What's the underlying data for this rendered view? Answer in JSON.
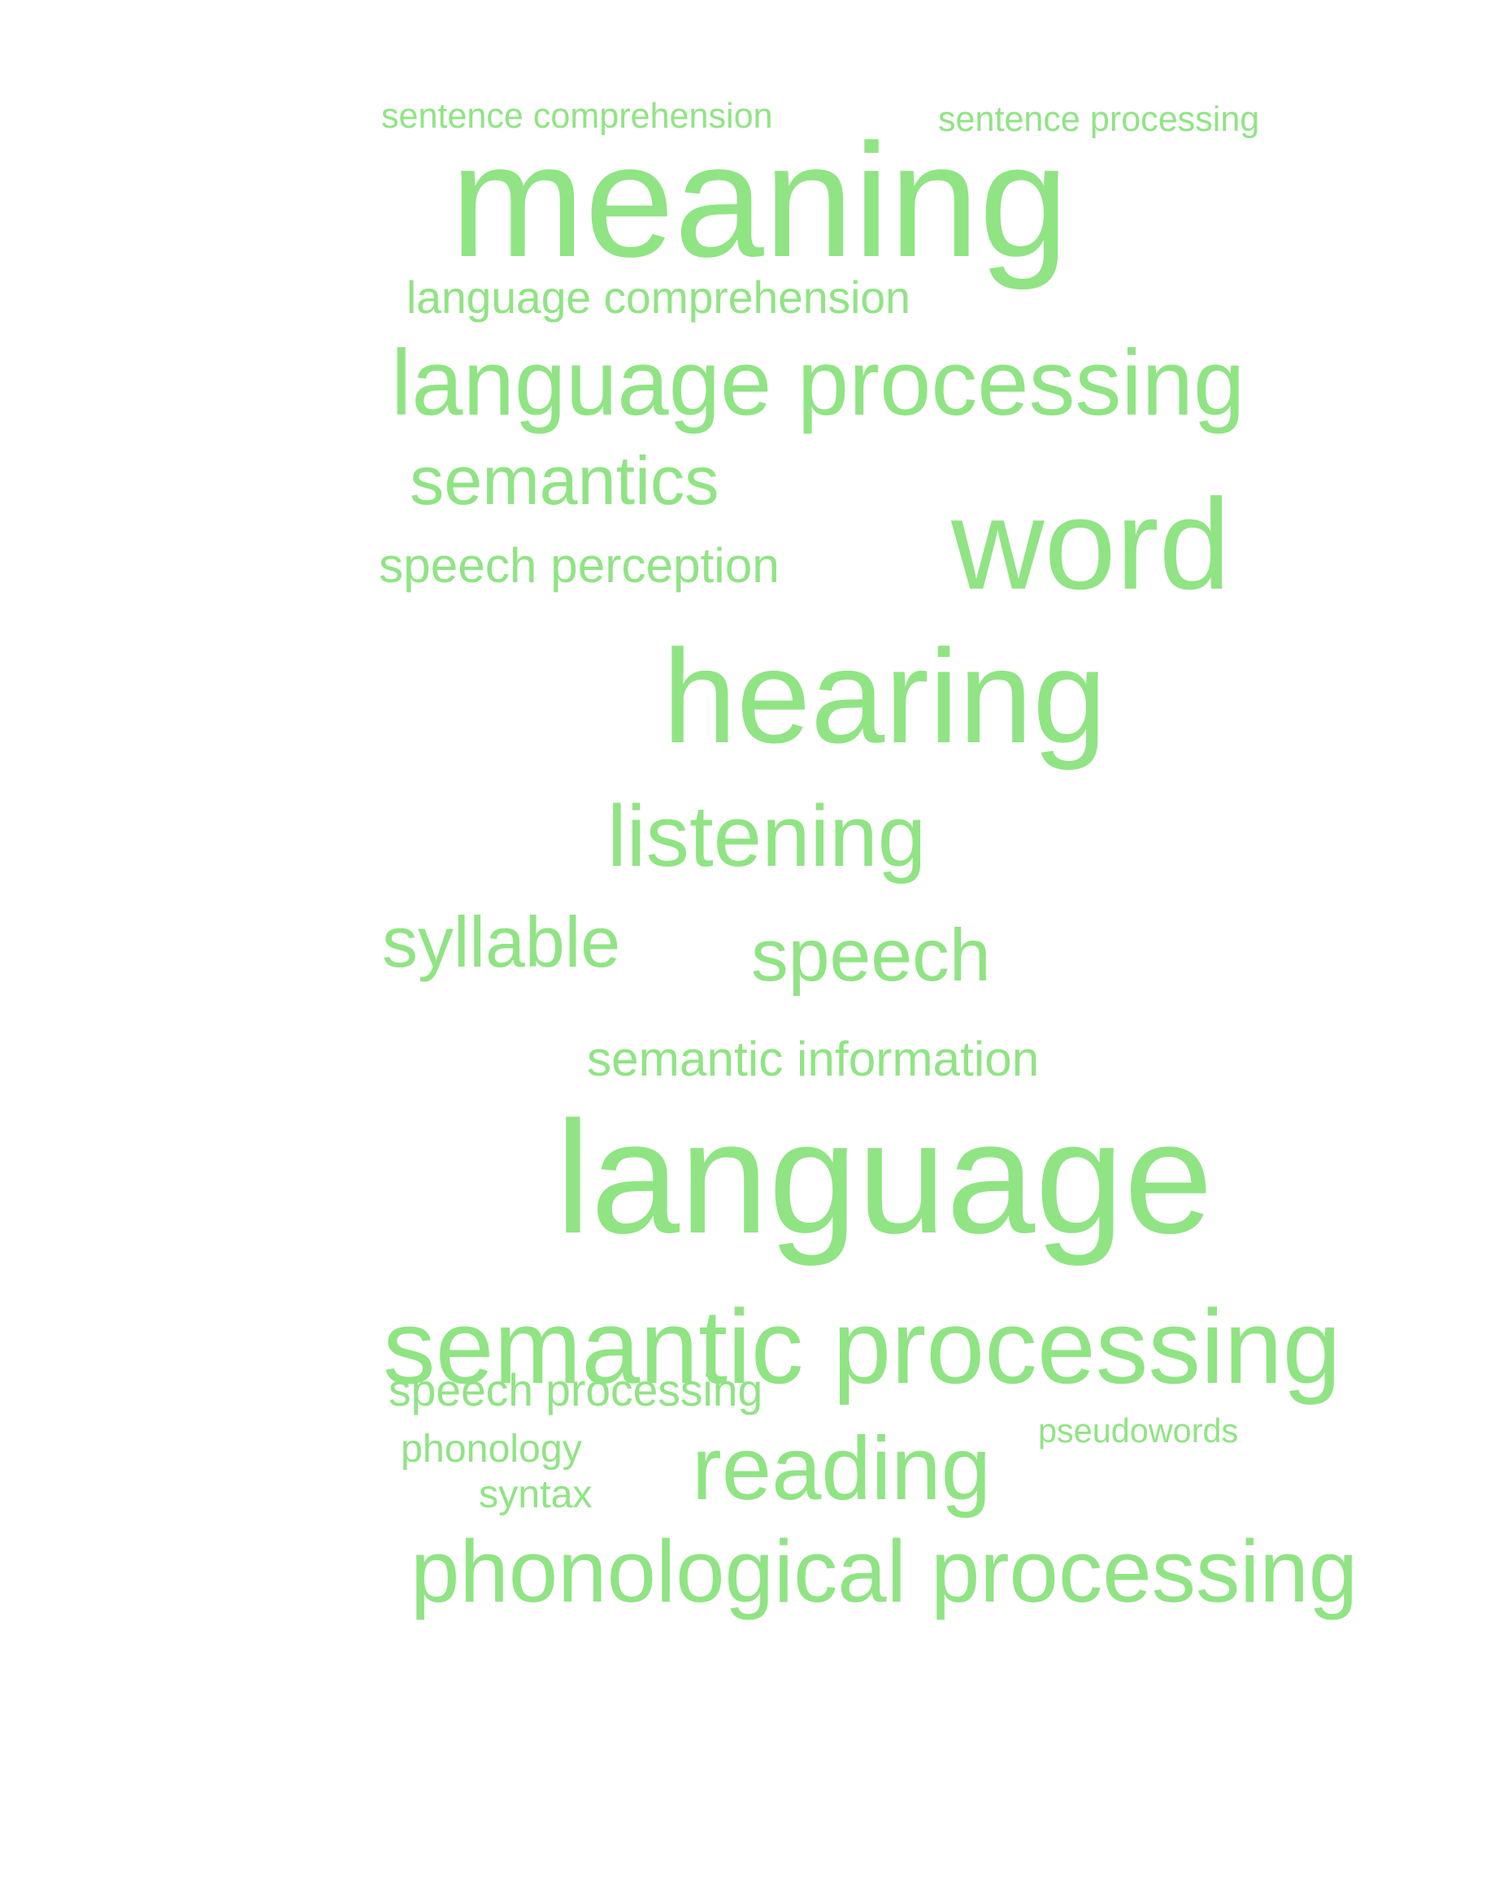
{
  "style": {
    "word_color": "#90E484",
    "background": "#ffffff"
  },
  "words": [
    "sentence comprehension",
    "sentence processing",
    "meaning",
    "language comprehension",
    "language processing",
    "semantics",
    "speech perception",
    "word",
    "hearing",
    "listening",
    "syllable",
    "speech",
    "semantic information",
    "language",
    "semantic processing",
    "speech processing",
    "phonology",
    "syntax",
    "reading",
    "pseudowords",
    "phonological processing"
  ]
}
